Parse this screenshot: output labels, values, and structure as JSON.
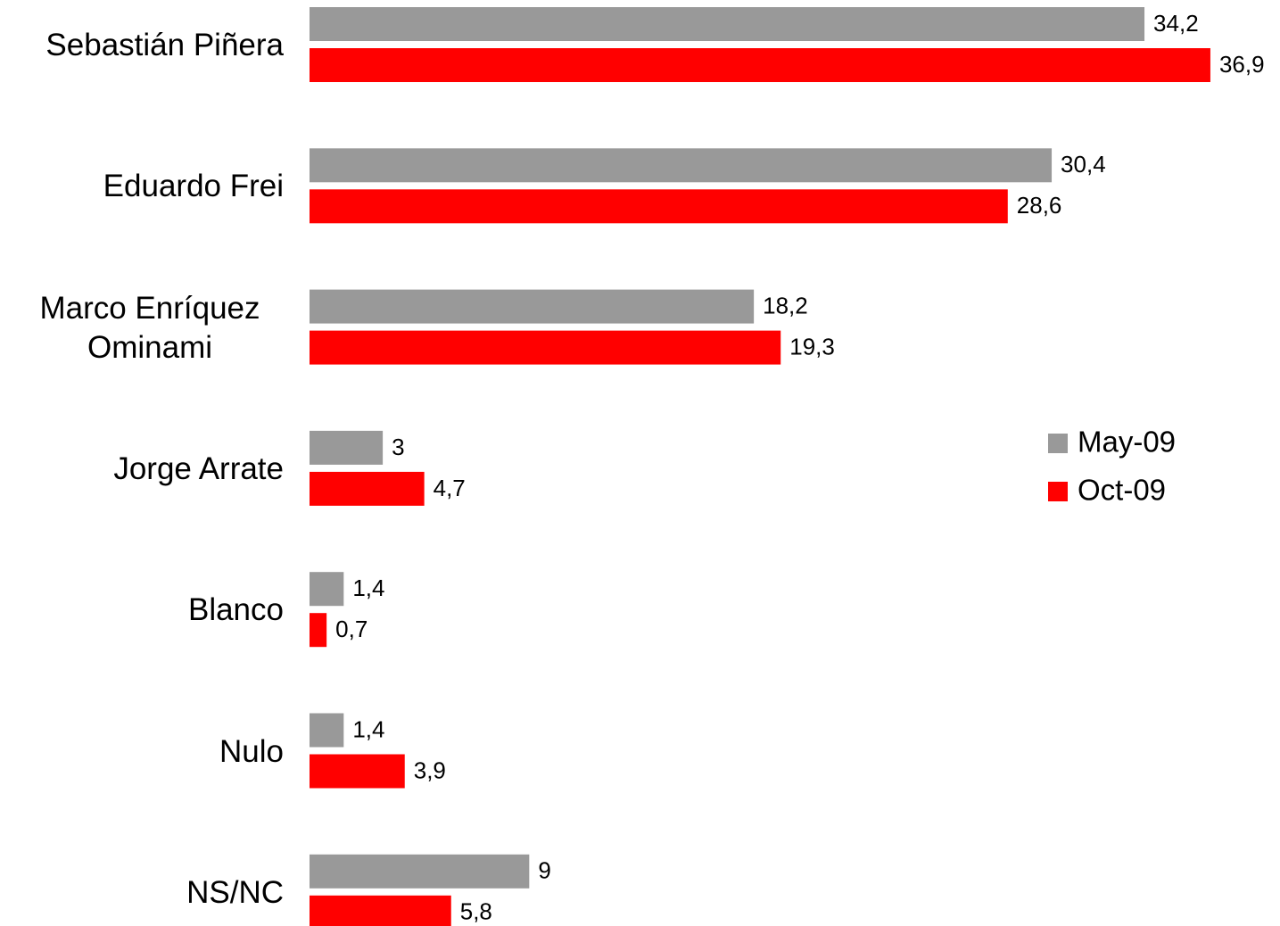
{
  "chart_data": {
    "type": "bar",
    "orientation": "horizontal",
    "categories": [
      "Sebastián Piñera",
      "Eduardo Frei",
      "Marco Enríquez Ominami",
      "Jorge Arrate",
      "Blanco",
      "Nulo",
      "NS/NC"
    ],
    "series": [
      {
        "name": "May-09",
        "color": "#999999",
        "values": [
          34.2,
          30.4,
          18.2,
          3,
          1.4,
          1.4,
          9
        ],
        "value_labels": [
          "34,2",
          "30,4",
          "18,2",
          "3",
          "1,4",
          "1,4",
          "9"
        ]
      },
      {
        "name": "Oct-09",
        "color": "#ff0000",
        "values": [
          36.9,
          28.6,
          19.3,
          4.7,
          0.7,
          3.9,
          5.8
        ],
        "value_labels": [
          "36,9",
          "28,6",
          "19,3",
          "4,7",
          "0,7",
          "3,9",
          "5,8"
        ]
      }
    ],
    "legend": "right"
  }
}
